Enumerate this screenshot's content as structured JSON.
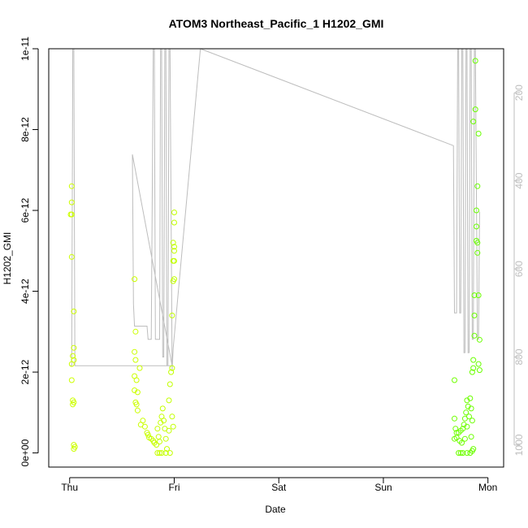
{
  "chart_data": {
    "type": "scatter",
    "title": "ATOM3 Northeast_Pacific_1 H1202_GMI",
    "xlabel": "Date",
    "ylabel": "H1202_GMI",
    "x_tick_labels": [
      "Thu",
      "Fri",
      "Sat",
      "Sun",
      "Mon"
    ],
    "x_ticks_day": [
      0,
      1,
      2,
      3,
      4
    ],
    "xlim_day": [
      -0.2,
      4.15
    ],
    "ylim": [
      -3.5e-13,
      1e-11
    ],
    "y_tick_values": [
      0,
      2e-12,
      4e-12,
      6e-12,
      8e-12,
      1e-11
    ],
    "y_tick_labels": [
      "0e+00",
      "2e-12",
      "4e-12",
      "6e-12",
      "8e-12",
      "1e-11"
    ],
    "right_axis": {
      "tick_values": [
        200,
        400,
        600,
        800,
        1000
      ],
      "tick_labels": [
        "200",
        "400",
        "600",
        "800",
        "1000"
      ],
      "lim": [
        1050,
        100
      ],
      "color": "#bdbdbd"
    },
    "line_color": "#bdbdbd",
    "series": [
      {
        "values": [
          [
            0.02,
            6.6e-12
          ],
          [
            0.02,
            6.2e-12
          ],
          [
            0.01,
            5.9e-12
          ],
          [
            0.02,
            5.9e-12
          ],
          [
            0.02,
            4.85e-12
          ],
          [
            0.04,
            3.5e-12
          ],
          [
            0.04,
            2.6e-12
          ],
          [
            0.03,
            2.4e-12
          ],
          [
            0.04,
            2.3e-12
          ],
          [
            0.02,
            2.2e-12
          ],
          [
            0.02,
            1.8e-12
          ],
          [
            0.03,
            1.3e-12
          ],
          [
            0.04,
            1.25e-12
          ],
          [
            0.03,
            1.2e-12
          ],
          [
            0.04,
            2e-13
          ],
          [
            0.05,
            1.5e-13
          ],
          [
            0.04,
            1e-13
          ],
          [
            0.62,
            4.3e-12
          ],
          [
            0.63,
            3e-12
          ],
          [
            0.62,
            2.5e-12
          ],
          [
            0.63,
            2.3e-12
          ],
          [
            0.67,
            2.1e-12
          ],
          [
            0.62,
            1.9e-12
          ],
          [
            0.64,
            1.8e-12
          ],
          [
            0.62,
            1.55e-12
          ],
          [
            0.65,
            1.5e-12
          ],
          [
            0.63,
            1.25e-12
          ],
          [
            0.64,
            1.2e-12
          ],
          [
            0.65,
            1.05e-12
          ],
          [
            0.7,
            8e-13
          ],
          [
            0.68,
            7e-13
          ],
          [
            0.72,
            6.5e-13
          ],
          [
            0.74,
            5e-13
          ],
          [
            0.75,
            4.5e-13
          ],
          [
            0.76,
            3.8e-13
          ],
          [
            0.78,
            3.5e-13
          ],
          [
            0.8,
            3e-13
          ],
          [
            0.81,
            2.5e-13
          ],
          [
            0.83,
            2e-13
          ],
          [
            0.84,
            6e-13
          ],
          [
            0.85,
            4e-13
          ],
          [
            0.86,
            2.8e-13
          ],
          [
            0.87,
            7.5e-13
          ],
          [
            0.88,
            9e-13
          ],
          [
            0.89,
            1.1e-12
          ],
          [
            0.9,
            8e-13
          ],
          [
            0.91,
            6e-13
          ],
          [
            0.92,
            3.5e-13
          ],
          [
            0.93,
            1e-13
          ],
          [
            0.95,
            1.3e-12
          ],
          [
            0.96,
            1.7e-12
          ],
          [
            0.97,
            2e-12
          ],
          [
            0.98,
            2.1e-12
          ],
          [
            0.99,
            6.5e-13
          ],
          [
            0.98,
            9e-13
          ],
          [
            0.95,
            5.5e-13
          ],
          [
            0.86,
            0.0
          ],
          [
            0.84,
            0.0
          ],
          [
            0.88,
            0.0
          ],
          [
            0.92,
            0.0
          ],
          [
            0.96,
            0.0
          ],
          [
            0.98,
            3.4e-12
          ],
          [
            0.99,
            4.25e-12
          ],
          [
            1.0,
            4.3e-12
          ],
          [
            0.99,
            4.75e-12
          ],
          [
            1.0,
            4.75e-12
          ],
          [
            1.0,
            5e-12
          ],
          [
            1.0,
            5.1e-12
          ],
          [
            0.99,
            5.2e-12
          ],
          [
            1.0,
            5.7e-12
          ],
          [
            1.0,
            5.95e-12
          ],
          [
            3.68,
            1.8e-12
          ],
          [
            3.68,
            8.5e-13
          ],
          [
            3.69,
            6e-13
          ],
          [
            3.7,
            5e-13
          ],
          [
            3.68,
            3.5e-13
          ],
          [
            3.7,
            3.8e-13
          ],
          [
            3.72,
            5e-13
          ],
          [
            3.73,
            3e-13
          ],
          [
            3.74,
            5.5e-13
          ],
          [
            3.75,
            2.5e-13
          ],
          [
            3.76,
            6e-13
          ],
          [
            3.77,
            7e-13
          ],
          [
            3.78,
            3.5e-13
          ],
          [
            3.78,
            8.5e-13
          ],
          [
            3.79,
            1e-12
          ],
          [
            3.8,
            1.3e-12
          ],
          [
            3.8,
            6.5e-13
          ],
          [
            3.81,
            1.15e-12
          ],
          [
            3.82,
            9e-13
          ],
          [
            3.83,
            1.35e-12
          ],
          [
            3.84,
            1.1e-12
          ],
          [
            3.84,
            4e-13
          ],
          [
            3.85,
            8e-13
          ],
          [
            3.86,
            2.3e-12
          ],
          [
            3.86,
            2.1e-12
          ],
          [
            3.85,
            2e-12
          ],
          [
            3.87,
            2.9e-12
          ],
          [
            3.87,
            3.4e-12
          ],
          [
            3.87,
            3.9e-12
          ],
          [
            3.86,
            8.2e-12
          ],
          [
            3.88,
            9.7e-12
          ],
          [
            3.88,
            8.5e-12
          ],
          [
            3.89,
            6e-12
          ],
          [
            3.89,
            5.6e-12
          ],
          [
            3.9,
            5.2e-12
          ],
          [
            3.89,
            5.25e-12
          ],
          [
            3.9,
            4.95e-12
          ],
          [
            3.9,
            6.6e-12
          ],
          [
            3.91,
            7.9e-12
          ],
          [
            3.92,
            2.8e-12
          ],
          [
            3.91,
            2.2e-12
          ],
          [
            3.92,
            2.05e-12
          ],
          [
            3.91,
            3.9e-12
          ],
          [
            3.72,
            0.0
          ],
          [
            3.74,
            0.0
          ],
          [
            3.76,
            0.0
          ],
          [
            3.8,
            0.0
          ],
          [
            3.83,
            0.0
          ],
          [
            3.85,
            5e-14
          ],
          [
            3.86,
            1e-13
          ]
        ]
      },
      {
        "values": [
          [
            0.0,
            820
          ],
          [
            0.02,
            820
          ],
          [
            0.03,
            100
          ],
          [
            0.04,
            100
          ],
          [
            0.05,
            820
          ],
          [
            0.5,
            820
          ],
          [
            0.98,
            820
          ],
          [
            0.6,
            340
          ],
          [
            0.61,
            680
          ],
          [
            0.62,
            730
          ],
          [
            0.7,
            730
          ],
          [
            0.74,
            730
          ],
          [
            0.75,
            760
          ],
          [
            0.78,
            760
          ],
          [
            0.8,
            100
          ],
          [
            0.81,
            100
          ],
          [
            0.82,
            760
          ],
          [
            0.83,
            760
          ],
          [
            0.86,
            760
          ],
          [
            0.87,
            100
          ],
          [
            0.88,
            100
          ],
          [
            0.89,
            800
          ],
          [
            0.9,
            800
          ],
          [
            0.91,
            100
          ],
          [
            0.92,
            100
          ],
          [
            0.93,
            820
          ],
          [
            0.94,
            820
          ],
          [
            0.95,
            100
          ],
          [
            0.96,
            100
          ],
          [
            0.98,
            830
          ],
          [
            0.99,
            780
          ],
          [
            1.25,
            100
          ],
          [
            3.67,
            320
          ],
          [
            3.68,
            700
          ],
          [
            3.7,
            700
          ],
          [
            3.71,
            100
          ],
          [
            3.72,
            100
          ],
          [
            3.73,
            700
          ],
          [
            3.74,
            700
          ],
          [
            3.75,
            100
          ],
          [
            3.76,
            100
          ],
          [
            3.77,
            790
          ],
          [
            3.78,
            790
          ],
          [
            3.79,
            100
          ],
          [
            3.8,
            100
          ],
          [
            3.81,
            790
          ],
          [
            3.82,
            790
          ],
          [
            3.83,
            100
          ],
          [
            3.84,
            100
          ],
          [
            3.85,
            760
          ],
          [
            3.86,
            760
          ],
          [
            3.87,
            100
          ],
          [
            3.88,
            100
          ],
          [
            3.9,
            760
          ],
          [
            3.91,
            760
          ],
          [
            3.92,
            470
          ]
        ]
      }
    ]
  }
}
